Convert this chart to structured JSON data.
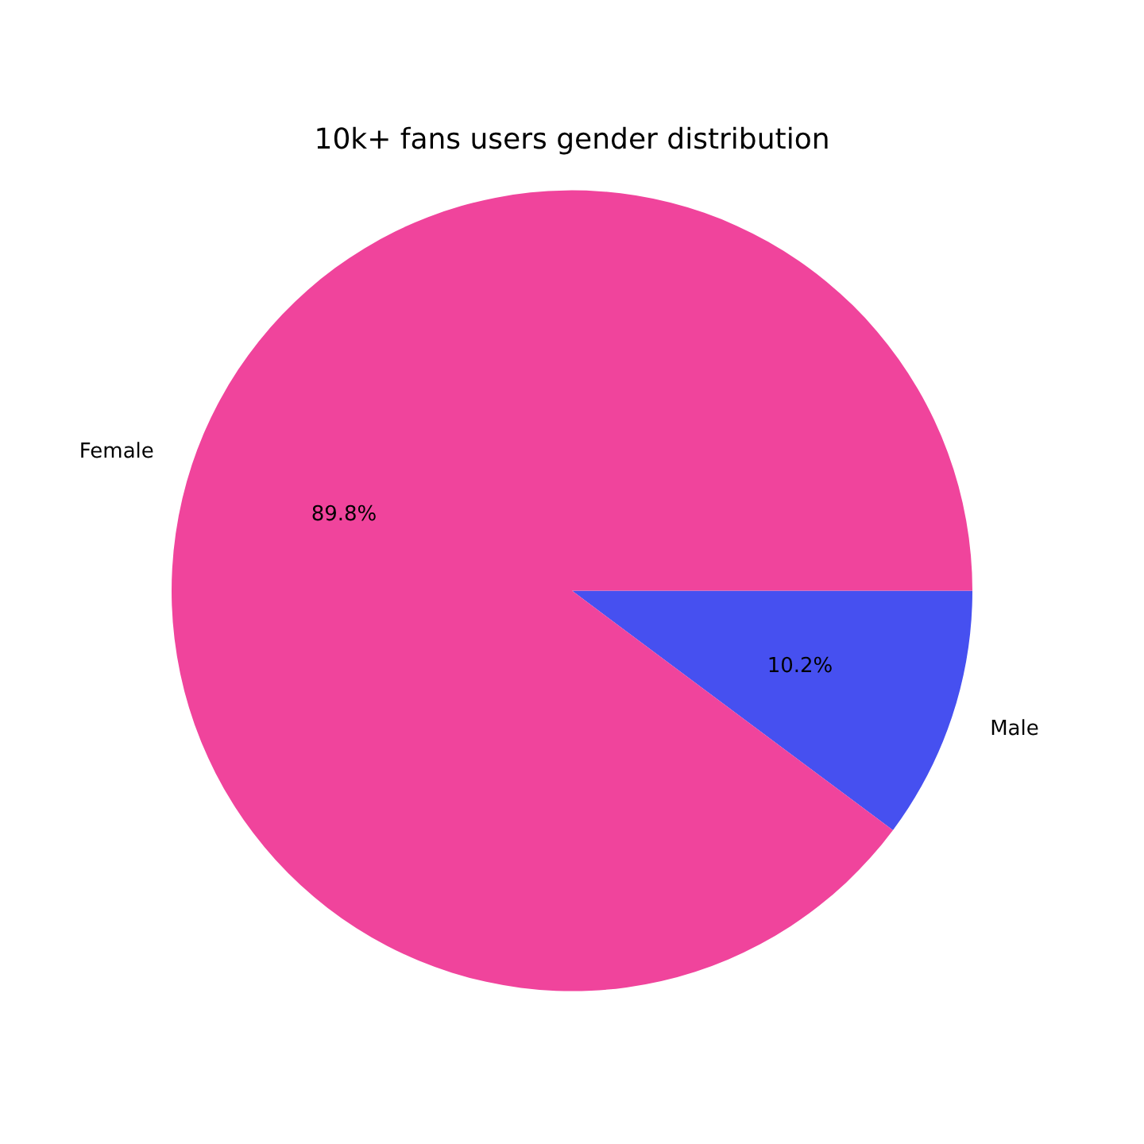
{
  "chart_data": {
    "type": "pie",
    "title": "10k+ fans users gender distribution",
    "categories": [
      "Female",
      "Male"
    ],
    "values": [
      89.8,
      10.2
    ],
    "colors": [
      "#f0449c",
      "#4650f0"
    ],
    "value_labels": [
      "89.8%",
      "10.2%"
    ],
    "legend": false
  }
}
